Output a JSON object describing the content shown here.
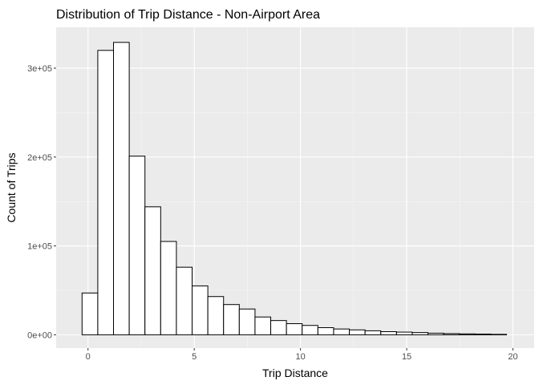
{
  "chart_data": {
    "type": "bar",
    "title": "Distribution of Trip Distance - Non-Airport Area",
    "xlabel": "Trip Distance",
    "ylabel": "Count of Trips",
    "xlim": [
      -1.5,
      21.0
    ],
    "ylim": [
      -15000,
      346000
    ],
    "bin_width": 0.74,
    "x_ticks": [
      0,
      5,
      10,
      15,
      20
    ],
    "x_tick_labels": [
      "0",
      "5",
      "10",
      "15",
      "20"
    ],
    "y_ticks": [
      0,
      100000,
      200000,
      300000
    ],
    "y_tick_labels": [
      "0e+00",
      "1e+05",
      "2e+05",
      "3e+05"
    ],
    "grid": true,
    "bars": [
      {
        "x_start": -0.28,
        "x_end": 0.46,
        "count": 47000
      },
      {
        "x_start": 0.46,
        "x_end": 1.2,
        "count": 320000
      },
      {
        "x_start": 1.2,
        "x_end": 1.94,
        "count": 329000
      },
      {
        "x_start": 1.94,
        "x_end": 2.68,
        "count": 201000
      },
      {
        "x_start": 2.68,
        "x_end": 3.42,
        "count": 144000
      },
      {
        "x_start": 3.42,
        "x_end": 4.16,
        "count": 105000
      },
      {
        "x_start": 4.16,
        "x_end": 4.9,
        "count": 76000
      },
      {
        "x_start": 4.9,
        "x_end": 5.64,
        "count": 55000
      },
      {
        "x_start": 5.64,
        "x_end": 6.38,
        "count": 43000
      },
      {
        "x_start": 6.38,
        "x_end": 7.12,
        "count": 34000
      },
      {
        "x_start": 7.12,
        "x_end": 7.86,
        "count": 29000
      },
      {
        "x_start": 7.86,
        "x_end": 8.6,
        "count": 20000
      },
      {
        "x_start": 8.6,
        "x_end": 9.34,
        "count": 16000
      },
      {
        "x_start": 9.34,
        "x_end": 10.08,
        "count": 12500
      },
      {
        "x_start": 10.08,
        "x_end": 10.82,
        "count": 10500
      },
      {
        "x_start": 10.82,
        "x_end": 11.56,
        "count": 8000
      },
      {
        "x_start": 11.56,
        "x_end": 12.3,
        "count": 6500
      },
      {
        "x_start": 12.3,
        "x_end": 13.04,
        "count": 5500
      },
      {
        "x_start": 13.04,
        "x_end": 13.78,
        "count": 4500
      },
      {
        "x_start": 13.78,
        "x_end": 14.52,
        "count": 3500
      },
      {
        "x_start": 14.52,
        "x_end": 15.26,
        "count": 3000
      },
      {
        "x_start": 15.26,
        "x_end": 16.0,
        "count": 2500
      },
      {
        "x_start": 16.0,
        "x_end": 16.74,
        "count": 1800
      },
      {
        "x_start": 16.74,
        "x_end": 17.48,
        "count": 1300
      },
      {
        "x_start": 17.48,
        "x_end": 18.22,
        "count": 1000
      },
      {
        "x_start": 18.22,
        "x_end": 18.96,
        "count": 800
      },
      {
        "x_start": 18.96,
        "x_end": 19.7,
        "count": 500
      }
    ],
    "colors": {
      "bar_fill": "#ffffff",
      "bar_stroke": "#000000",
      "panel_bg": "#ebebeb",
      "grid_major": "#ffffff",
      "grid_minor": "#f5f5f5",
      "tick_text": "#4d4d4d"
    }
  }
}
